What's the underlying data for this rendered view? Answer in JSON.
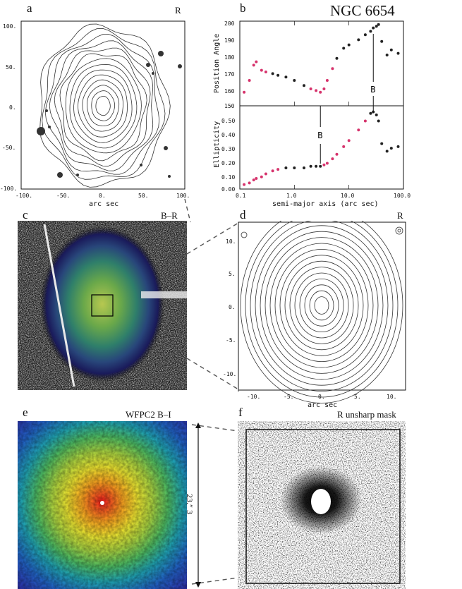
{
  "figure_title": "NGC 6654",
  "panels": {
    "a": {
      "letter": "a",
      "tag": "R",
      "xlabel": "arc sec",
      "xticks": [
        "-100.",
        "-50.",
        "0.",
        "50.",
        "100."
      ],
      "yticks": [
        "100.",
        "50.",
        "0.",
        "-50.",
        "-100."
      ]
    },
    "b": {
      "letter": "b",
      "ylabel_top": "Position Angle",
      "ylabel_bottom": "Ellipticity",
      "xlabel": "semi-major axis (arc sec)",
      "pa_ticks": [
        "200",
        "190",
        "180",
        "170",
        "160",
        "150"
      ],
      "ell_ticks": [
        "0.50",
        "0.40",
        "0.30",
        "0.20",
        "0.10",
        "0.00"
      ],
      "xticks": [
        "0.1",
        "1.0",
        "10.0",
        "100.0"
      ],
      "marker_label": "B"
    },
    "c": {
      "letter": "c",
      "tag": "B–R"
    },
    "d": {
      "letter": "d",
      "tag": "R",
      "xlabel": "arc sec",
      "xticks": [
        "-10.",
        "-5.",
        "0.",
        "5.",
        "10."
      ],
      "yticks": [
        "10.",
        "5.",
        "0.",
        "-5.",
        "-10."
      ]
    },
    "e": {
      "letter": "e",
      "tag": "WFPC2 B–I",
      "scale_label": "23.″ 3"
    },
    "f": {
      "letter": "f",
      "tag": "R unsharp mask"
    }
  },
  "chart_data": {
    "type": "scatter",
    "xscale": "log",
    "xlim": [
      0.1,
      100
    ],
    "position_angle": {
      "ylim": [
        150,
        200
      ],
      "x": [
        0.12,
        0.15,
        0.18,
        0.2,
        0.25,
        0.3,
        0.4,
        0.5,
        0.7,
        1.0,
        1.5,
        2.0,
        2.5,
        3.0,
        3.5,
        4.0,
        5.0,
        6.0,
        8.0,
        10.0,
        15.0,
        20.0,
        25.0,
        28.0,
        32.0,
        35.0,
        40.0,
        50.0,
        60.0,
        80.0
      ],
      "y": [
        158,
        165,
        174,
        176,
        171,
        170,
        169,
        168,
        167,
        165,
        162,
        160,
        159,
        158,
        160,
        165,
        172,
        178,
        184,
        186,
        189,
        192,
        194,
        196,
        197,
        198,
        188,
        180,
        183,
        181
      ]
    },
    "ellipticity": {
      "ylim": [
        0.0,
        0.55
      ],
      "x": [
        0.12,
        0.15,
        0.18,
        0.2,
        0.25,
        0.3,
        0.4,
        0.5,
        0.7,
        1.0,
        1.5,
        2.0,
        2.5,
        3.0,
        3.5,
        4.0,
        5.0,
        6.0,
        8.0,
        10.0,
        15.0,
        20.0,
        25.0,
        28.0,
        32.0,
        35.0,
        40.0,
        50.0,
        60.0,
        80.0
      ],
      "y": [
        0.03,
        0.04,
        0.06,
        0.07,
        0.08,
        0.1,
        0.12,
        0.13,
        0.14,
        0.14,
        0.14,
        0.15,
        0.15,
        0.15,
        0.16,
        0.17,
        0.2,
        0.23,
        0.28,
        0.32,
        0.39,
        0.45,
        0.5,
        0.51,
        0.49,
        0.45,
        0.3,
        0.25,
        0.27,
        0.28
      ]
    },
    "bar_markers": [
      {
        "label": "B",
        "x": 3.0
      },
      {
        "label": "B",
        "x": 28.0
      }
    ]
  }
}
